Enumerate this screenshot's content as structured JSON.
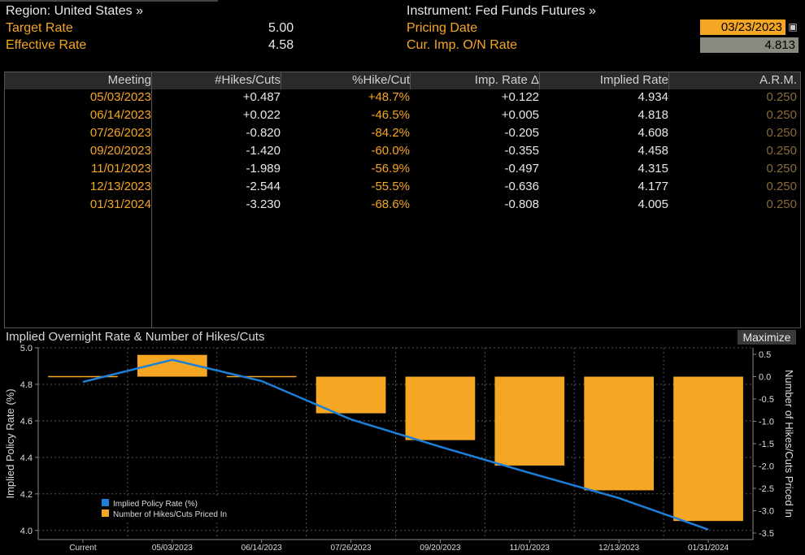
{
  "header": {
    "region": "Region: United States »",
    "target_rate_label": "Target Rate",
    "target_rate_value": "5.00",
    "effective_rate_label": "Effective Rate",
    "effective_rate_value": "4.58",
    "instrument": "Instrument: Fed Funds Futures »",
    "pricing_date_label": "Pricing Date",
    "pricing_date_value": "03/23/2023",
    "on_rate_label": "Cur. Imp. O/N Rate",
    "on_rate_value": "4.813"
  },
  "table": {
    "columns": [
      "Meeting",
      "#Hikes/Cuts",
      "%Hike/Cut",
      "Imp. Rate Δ",
      "Implied Rate",
      "A.R.M."
    ],
    "rows": [
      [
        "05/03/2023",
        "+0.487",
        "+48.7%",
        "+0.122",
        "4.934",
        "0.250"
      ],
      [
        "06/14/2023",
        "+0.022",
        "-46.5%",
        "+0.005",
        "4.818",
        "0.250"
      ],
      [
        "07/26/2023",
        "-0.820",
        "-84.2%",
        "-0.205",
        "4.608",
        "0.250"
      ],
      [
        "09/20/2023",
        "-1.420",
        "-60.0%",
        "-0.355",
        "4.458",
        "0.250"
      ],
      [
        "11/01/2023",
        "-1.989",
        "-56.9%",
        "-0.497",
        "4.315",
        "0.250"
      ],
      [
        "12/13/2023",
        "-2.544",
        "-55.5%",
        "-0.636",
        "4.177",
        "0.250"
      ],
      [
        "01/31/2024",
        "-3.230",
        "-68.6%",
        "-0.808",
        "4.005",
        "0.250"
      ]
    ]
  },
  "chart_panel": {
    "title": "Implied Overnight Rate & Number of Hikes/Cuts",
    "maximize_label": "Maximize"
  },
  "colors": {
    "accent_orange": "#f5a623",
    "line_blue": "#1e7fd8",
    "background": "#000000"
  },
  "chart_data": {
    "type": "bar",
    "categories": [
      "Current",
      "05/03/2023",
      "06/14/2023",
      "07/26/2023",
      "09/20/2023",
      "11/01/2023",
      "12/13/2023",
      "01/31/2024"
    ],
    "series": [
      {
        "name": "Implied Policy Rate (%)",
        "type": "line",
        "axis": "left",
        "values": [
          4.813,
          4.934,
          4.818,
          4.608,
          4.458,
          4.315,
          4.177,
          4.005
        ]
      },
      {
        "name": "Number of Hikes/Cuts Priced In",
        "type": "bar",
        "axis": "right",
        "values": [
          0,
          0.487,
          0.022,
          -0.82,
          -1.42,
          -1.989,
          -2.544,
          -3.23
        ]
      }
    ],
    "ylabel": "Implied Policy Rate (%)",
    "y2label": "Number of Hikes/Cuts Priced In",
    "ylim": [
      3.95,
      5.0
    ],
    "y2lim": [
      -3.5,
      0.5
    ],
    "yticks": [
      "4.0",
      "4.2",
      "4.4",
      "4.6",
      "4.8",
      "5.0"
    ],
    "y2ticks": [
      "-3.5",
      "-3.0",
      "-2.5",
      "-2.0",
      "-1.5",
      "-1.0",
      "-0.5",
      "0.0",
      "0.5"
    ],
    "grid": true,
    "legend": "bottom-left"
  }
}
